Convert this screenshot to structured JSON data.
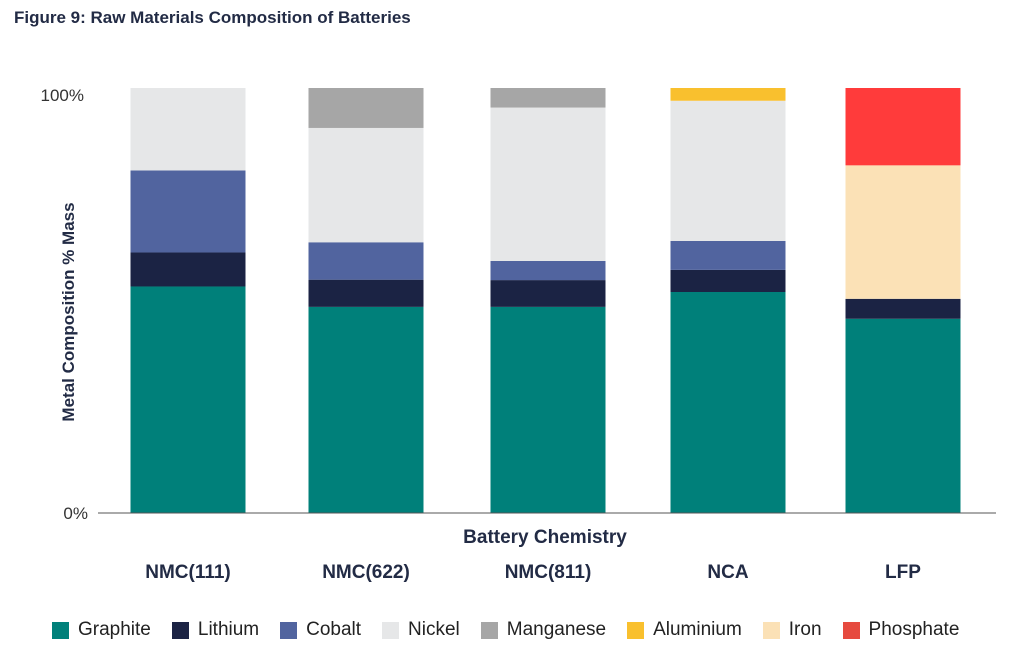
{
  "figure_title": "Figure 9:  Raw Materials Composition of Batteries",
  "chart_data": {
    "type": "bar",
    "stacked": true,
    "title": "Figure 9:  Raw Materials Composition of Batteries",
    "xlabel": "Battery Chemistry",
    "ylabel": "Metal Composition % Mass",
    "y_tick_labels": [
      "0%",
      "100%"
    ],
    "ylim": [
      0,
      100
    ],
    "categories": [
      "NMC(111)",
      "NMC(622)",
      "NMC(811)",
      "NCA",
      "LFP"
    ],
    "series": [
      {
        "name": "Graphite",
        "color": "#00807a",
        "values": [
          53.3,
          48.5,
          48.5,
          52.0,
          45.7
        ]
      },
      {
        "name": "Lithium",
        "color": "#1b2344",
        "values": [
          8.0,
          6.4,
          6.3,
          5.2,
          4.7
        ]
      },
      {
        "name": "Cobalt",
        "color": "#51649f",
        "values": [
          19.3,
          8.8,
          4.5,
          6.8,
          0
        ]
      },
      {
        "name": "Nickel",
        "color": "#e6e7e8",
        "values": [
          19.4,
          26.9,
          36.1,
          33.0,
          0
        ]
      },
      {
        "name": "Manganese",
        "color": "#a6a6a6",
        "values": [
          0,
          9.4,
          4.6,
          0,
          0
        ]
      },
      {
        "name": "Aluminium",
        "color": "#f9c02e",
        "values": [
          0,
          0,
          0,
          3.0,
          0
        ]
      },
      {
        "name": "Iron",
        "color": "#fbe1b6",
        "values": [
          0,
          0,
          0,
          0,
          31.4
        ]
      },
      {
        "name": "Phosphate",
        "color": "#ff3b3b",
        "values": [
          0,
          0,
          0,
          0,
          18.2
        ]
      }
    ],
    "legend_position": "bottom",
    "grid": false
  },
  "legend": [
    {
      "label": "Graphite",
      "color": "#00807a"
    },
    {
      "label": "Lithium",
      "color": "#1b2344"
    },
    {
      "label": "Cobalt",
      "color": "#51649f"
    },
    {
      "label": "Nickel",
      "color": "#e6e7e8"
    },
    {
      "label": "Manganese",
      "color": "#a6a6a6"
    },
    {
      "label": "Aluminium",
      "color": "#f9c02e"
    },
    {
      "label": "Iron",
      "color": "#fbe1b6"
    },
    {
      "label": "Phosphate",
      "color": "#e64a3f"
    }
  ]
}
